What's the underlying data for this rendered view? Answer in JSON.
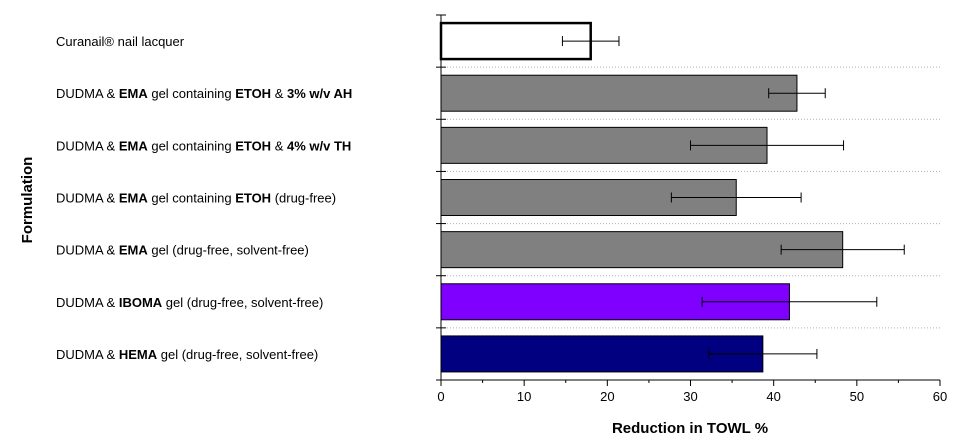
{
  "chart_data": {
    "type": "bar",
    "orientation": "horizontal",
    "title": "",
    "xlabel": "Reduction in TOWL %",
    "ylabel": "Formulation",
    "xlim": [
      0,
      60
    ],
    "xticks": [
      0,
      10,
      20,
      30,
      40,
      50,
      60
    ],
    "grid": "dotted horizontal separators between categories",
    "categories": [
      {
        "parts": [
          {
            "t": "Curanail® nail lacquer",
            "b": false
          }
        ]
      },
      {
        "parts": [
          {
            "t": "DUDMA & ",
            "b": false
          },
          {
            "t": "EMA",
            "b": true
          },
          {
            "t": " gel containing ",
            "b": false
          },
          {
            "t": "ETOH",
            "b": true
          },
          {
            "t": " & ",
            "b": false
          },
          {
            "t": "3% w/v AH",
            "b": true
          }
        ]
      },
      {
        "parts": [
          {
            "t": "DUDMA & ",
            "b": false
          },
          {
            "t": "EMA",
            "b": true
          },
          {
            "t": " gel containing ",
            "b": false
          },
          {
            "t": "ETOH",
            "b": true
          },
          {
            "t": " & ",
            "b": false
          },
          {
            "t": "4% w/v TH",
            "b": true
          }
        ]
      },
      {
        "parts": [
          {
            "t": "DUDMA & ",
            "b": false
          },
          {
            "t": "EMA",
            "b": true
          },
          {
            "t": " gel containing ",
            "b": false
          },
          {
            "t": "ETOH",
            "b": true
          },
          {
            "t": " (drug-free)",
            "b": false
          }
        ]
      },
      {
        "parts": [
          {
            "t": "DUDMA & ",
            "b": false
          },
          {
            "t": "EMA",
            "b": true
          },
          {
            "t": " gel (drug-free, solvent-free)",
            "b": false
          }
        ]
      },
      {
        "parts": [
          {
            "t": "DUDMA & ",
            "b": false
          },
          {
            "t": "IBOMA",
            "b": true
          },
          {
            "t": " gel (drug-free, solvent-free)",
            "b": false
          }
        ]
      },
      {
        "parts": [
          {
            "t": "DUDMA & ",
            "b": false
          },
          {
            "t": "HEMA",
            "b": true
          },
          {
            "t": " gel (drug-free, solvent-free)",
            "b": false
          }
        ]
      }
    ],
    "values": [
      18.0,
      42.8,
      39.2,
      35.5,
      48.3,
      41.9,
      38.7
    ],
    "errors": [
      3.4,
      3.4,
      9.2,
      7.8,
      7.4,
      10.5,
      6.5
    ],
    "fills": [
      "#ffffff",
      "#808080",
      "#808080",
      "#808080",
      "#808080",
      "#8000ff",
      "#000080"
    ],
    "outline_widths": [
      2.5,
      1,
      1,
      1,
      1,
      1,
      1
    ]
  }
}
